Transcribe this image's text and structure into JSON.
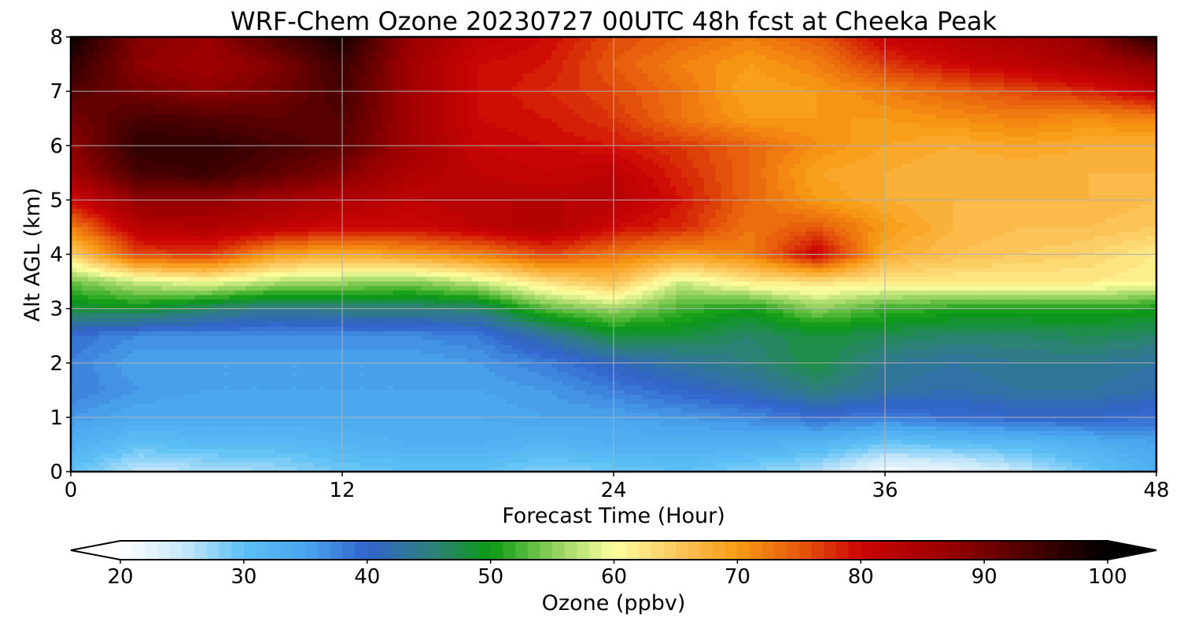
{
  "chart_data": {
    "type": "heatmap",
    "title": "WRF-Chem Ozone  20230727 00UTC 48h fcst at Cheeka Peak",
    "xlabel": "Forecast Time (Hour)",
    "ylabel": "Alt AGL (km)",
    "xlim": [
      0,
      48
    ],
    "ylim": [
      0,
      8
    ],
    "x_ticks": [
      "0",
      "12",
      "24",
      "36",
      "48"
    ],
    "y_ticks": [
      "0",
      "1",
      "2",
      "3",
      "4",
      "5",
      "6",
      "7",
      "8"
    ],
    "grid": true,
    "x": [
      0,
      3,
      6,
      9,
      12,
      15,
      18,
      21,
      24,
      27,
      30,
      33,
      36,
      39,
      42,
      45,
      48
    ],
    "y": [
      0,
      0.5,
      1,
      1.5,
      2,
      2.5,
      3,
      3.5,
      4,
      4.5,
      5,
      5.5,
      6,
      6.5,
      7,
      7.5,
      8
    ],
    "z": [
      [
        30,
        25,
        26,
        27,
        29,
        30,
        30,
        28,
        29,
        30,
        28,
        26,
        21,
        22,
        25,
        29,
        33
      ],
      [
        33,
        30,
        31,
        31,
        32,
        33,
        33,
        32,
        33,
        33,
        33,
        32,
        29,
        30,
        31,
        33,
        35
      ],
      [
        36,
        34,
        34,
        34,
        34,
        34,
        34,
        35,
        35,
        36,
        37,
        39,
        38,
        39,
        40,
        40,
        39
      ],
      [
        38,
        36,
        35,
        35,
        35,
        35,
        35,
        36,
        38,
        40,
        42,
        45,
        43,
        42,
        43,
        43,
        42
      ],
      [
        38,
        35,
        35,
        35,
        35,
        35,
        36,
        38,
        41,
        43,
        45,
        48,
        44,
        43,
        44,
        44,
        43
      ],
      [
        39,
        37,
        37,
        37,
        37,
        37,
        38,
        43,
        48,
        48,
        46,
        48,
        47,
        46,
        46,
        47,
        46
      ],
      [
        48,
        49,
        46,
        44,
        45,
        45,
        46,
        53,
        56,
        52,
        50,
        55,
        52,
        51,
        51,
        51,
        50
      ],
      [
        54,
        58,
        60,
        57,
        56,
        55,
        58,
        63,
        66,
        58,
        62,
        63,
        62,
        62,
        62,
        62,
        61
      ],
      [
        64,
        76,
        77,
        70,
        68,
        70,
        72,
        76,
        73,
        70,
        72,
        81,
        68,
        66,
        65,
        64,
        62
      ],
      [
        72,
        83,
        84,
        82,
        80,
        80,
        82,
        84,
        80,
        78,
        73,
        75,
        70,
        67,
        66,
        66,
        65
      ],
      [
        80,
        88,
        88,
        86,
        84,
        82,
        83,
        83,
        83,
        79,
        74,
        70,
        68,
        67,
        67,
        67,
        66
      ],
      [
        86,
        94,
        95,
        92,
        89,
        84,
        82,
        81,
        82,
        78,
        74,
        69,
        68,
        67,
        67,
        67,
        67
      ],
      [
        88,
        96,
        96,
        94,
        92,
        86,
        81,
        80,
        79,
        77,
        74,
        71,
        69,
        68,
        69,
        68,
        68
      ],
      [
        90,
        94,
        93,
        92,
        93,
        86,
        80,
        79,
        77,
        73,
        70,
        70,
        70,
        71,
        72,
        71,
        72
      ],
      [
        93,
        90,
        88,
        90,
        94,
        86,
        80,
        78,
        76,
        73,
        69,
        70,
        72,
        74,
        76,
        78,
        82
      ],
      [
        96,
        88,
        86,
        89,
        95,
        86,
        80,
        79,
        75,
        72,
        70,
        72,
        77,
        80,
        82,
        85,
        88
      ],
      [
        99,
        89,
        87,
        93,
        98,
        87,
        82,
        80,
        76,
        74,
        72,
        75,
        81,
        83,
        85,
        88,
        97
      ]
    ],
    "colorbar": {
      "label": "Ozone  (ppbv)",
      "min": 20,
      "max": 100,
      "extend": "both",
      "ticks": [
        "20",
        "30",
        "40",
        "50",
        "60",
        "70",
        "80",
        "90",
        "100"
      ],
      "stops": [
        {
          "v": 20,
          "c": "#ffffff"
        },
        {
          "v": 25,
          "c": "#c9e9fb"
        },
        {
          "v": 30,
          "c": "#5cc0f5"
        },
        {
          "v": 35,
          "c": "#4aa6ee"
        },
        {
          "v": 40,
          "c": "#3263cc"
        },
        {
          "v": 45,
          "c": "#2f7f80"
        },
        {
          "v": 50,
          "c": "#0a9a12"
        },
        {
          "v": 55,
          "c": "#8ccf58"
        },
        {
          "v": 60,
          "c": "#ffffa0"
        },
        {
          "v": 65,
          "c": "#fcc860"
        },
        {
          "v": 70,
          "c": "#f89a14"
        },
        {
          "v": 75,
          "c": "#e65a0c"
        },
        {
          "v": 80,
          "c": "#cc0404"
        },
        {
          "v": 87,
          "c": "#9a0000"
        },
        {
          "v": 93,
          "c": "#520000"
        },
        {
          "v": 100,
          "c": "#000000"
        }
      ]
    }
  },
  "colors": {
    "grid": "#b0b0b0",
    "axis": "#000000"
  }
}
